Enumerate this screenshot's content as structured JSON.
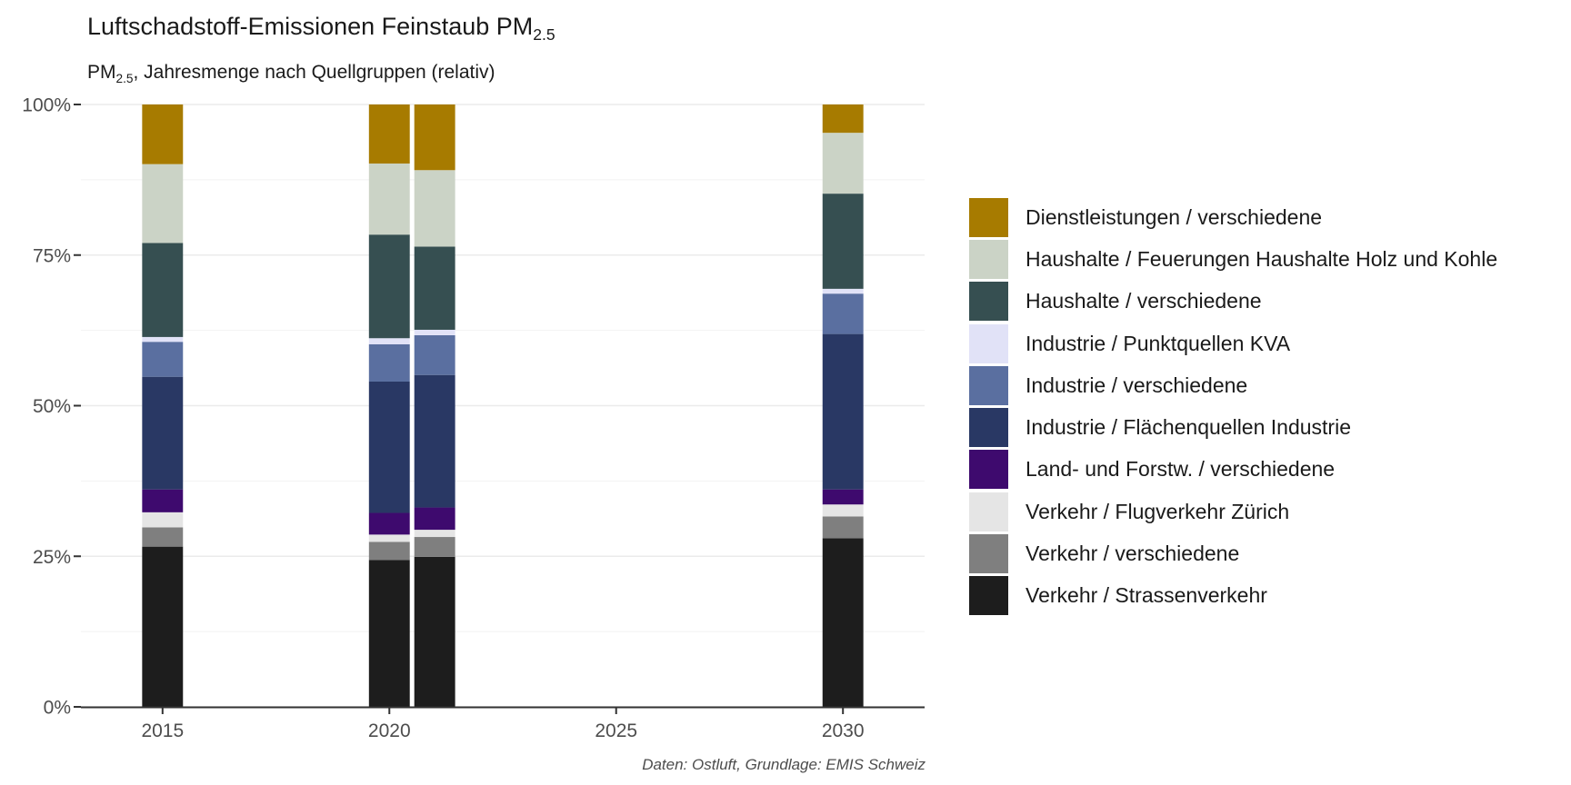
{
  "title": {
    "text": "Luftschadstoff-Emissionen Feinstaub PM",
    "sub": "2.5"
  },
  "subtitle": {
    "pre": "PM",
    "sub": "2.5",
    "post": ", Jahresmenge nach Quellgruppen (relativ)"
  },
  "caption": "Daten: Ostluft, Grundlage: EMIS Schweiz",
  "chart_data": {
    "type": "bar",
    "stacked": "percent",
    "title": "Luftschadstoff-Emissionen Feinstaub PM2.5",
    "subtitle": "PM2.5, Jahresmenge nach Quellgruppen (relativ)",
    "xlabel": "",
    "ylabel": "",
    "xlim": [
      2013.2,
      2031.8
    ],
    "x_ticks": [
      2015,
      2020,
      2025,
      2030
    ],
    "ylim": [
      0,
      1
    ],
    "y_ticks": [
      0,
      0.25,
      0.5,
      0.75,
      1
    ],
    "y_tick_labels": [
      "0%",
      "25%",
      "50%",
      "75%",
      "100%"
    ],
    "grid": true,
    "legend_position": "right",
    "x": [
      2015,
      2020,
      2021,
      2030
    ],
    "series": [
      {
        "name": "Verkehr / Strassenverkehr",
        "color": "#1d1d1d",
        "values": [
          0.266,
          0.244,
          0.249,
          0.28
        ]
      },
      {
        "name": "Verkehr / verschiedene",
        "color": "#7f7f7f",
        "values": [
          0.032,
          0.03,
          0.033,
          0.036
        ]
      },
      {
        "name": "Verkehr / Flugverkehr Zürich",
        "color": "#e5e5e5",
        "values": [
          0.025,
          0.012,
          0.012,
          0.02
        ]
      },
      {
        "name": "Land- und Forstw. / verschiedene",
        "color": "#3e0a6e",
        "values": [
          0.038,
          0.036,
          0.037,
          0.025
        ]
      },
      {
        "name": "Industrie / Flächenquellen Industrie",
        "color": "#293864",
        "values": [
          0.187,
          0.218,
          0.22,
          0.258
        ]
      },
      {
        "name": "Industrie / verschiedene",
        "color": "#5a6fa0",
        "values": [
          0.058,
          0.062,
          0.066,
          0.067
        ]
      },
      {
        "name": "Industrie / Punktquellen KVA",
        "color": "#e1e2f7",
        "values": [
          0.008,
          0.01,
          0.009,
          0.008
        ]
      },
      {
        "name": "Haushalte / verschiedene",
        "color": "#364f51",
        "values": [
          0.156,
          0.172,
          0.138,
          0.158
        ]
      },
      {
        "name": "Haushalte / Feuerungen Haushalte Holz und Kohle",
        "color": "#cbd3c6",
        "values": [
          0.131,
          0.118,
          0.127,
          0.101
        ]
      },
      {
        "name": "Dienstleistungen / verschiedene",
        "color": "#a77b00",
        "values": [
          0.099,
          0.098,
          0.109,
          0.047
        ]
      }
    ]
  }
}
